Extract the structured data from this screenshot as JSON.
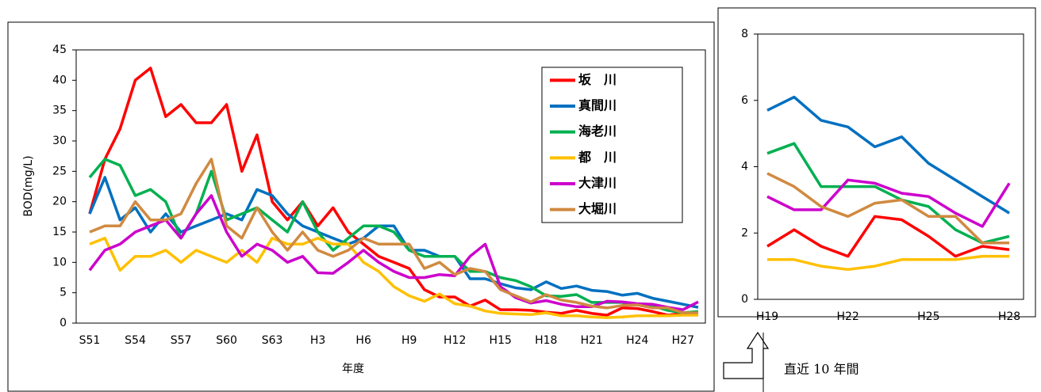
{
  "chart_data": [
    {
      "type": "line",
      "x_label": "年度",
      "y_label": "BOD(mg/L)",
      "categories": [
        "S51",
        null,
        null,
        "S54",
        null,
        null,
        "S57",
        null,
        null,
        "S60",
        null,
        null,
        "S63",
        null,
        null,
        "H3",
        null,
        null,
        "H6",
        null,
        null,
        "H9",
        null,
        null,
        "H12",
        null,
        null,
        "H15",
        null,
        null,
        "H18",
        null,
        null,
        "H21",
        null,
        null,
        "H24",
        null,
        null,
        "H27",
        null
      ],
      "ylim": [
        0,
        45
      ],
      "yticks": [
        0,
        5,
        10,
        15,
        20,
        25,
        30,
        35,
        40,
        45
      ],
      "grid": false,
      "legend": "upper right",
      "series": [
        {
          "name": "坂　川",
          "color": "#ff0000",
          "values": [
            18,
            27,
            32,
            40,
            42,
            34,
            36,
            33,
            33,
            36,
            25,
            31,
            20,
            17,
            20,
            16,
            19,
            15,
            13,
            11,
            10,
            9,
            5.5,
            4.3,
            4.3,
            2.8,
            3.8,
            2.2,
            2.2,
            2.1,
            1.8,
            1.6,
            2.1,
            1.6,
            1.3,
            2.5,
            2.4,
            1.9,
            1.3,
            1.6,
            1.5
          ]
        },
        {
          "name": "真間川",
          "color": "#0070c0",
          "values": [
            18,
            24,
            17,
            19,
            15,
            18,
            15,
            16,
            17,
            18,
            17,
            22,
            21,
            18,
            16,
            15,
            14,
            13,
            14,
            16,
            16,
            12,
            12,
            11,
            11,
            7.3,
            7.3,
            6.5,
            5.8,
            5.5,
            6.8,
            5.7,
            6.1,
            5.4,
            5.2,
            4.6,
            4.9,
            4.1,
            3.6,
            3.1,
            2.6
          ]
        },
        {
          "name": "海老川",
          "color": "#00b050",
          "values": [
            24,
            27,
            26,
            21,
            22,
            20,
            14,
            18,
            25,
            17,
            18,
            19,
            17,
            15,
            20,
            15,
            12,
            14,
            16,
            16,
            15,
            12,
            11,
            11,
            11,
            8.5,
            8.5,
            7.5,
            7,
            6,
            4.5,
            4.4,
            4.7,
            3.4,
            3.4,
            3.4,
            3.0,
            2.8,
            2.1,
            1.7,
            1.9
          ]
        },
        {
          "name": "都　川",
          "color": "#ffc000",
          "values": [
            13,
            14,
            8.7,
            11,
            11,
            12,
            10,
            12,
            11,
            10,
            12,
            10,
            14,
            13,
            13,
            14,
            13,
            13,
            10,
            8.5,
            6,
            4.5,
            3.6,
            4.8,
            3.2,
            2.8,
            2.0,
            1.6,
            1.5,
            1.4,
            1.7,
            1.2,
            1.2,
            1.0,
            0.9,
            1.0,
            1.2,
            1.2,
            1.2,
            1.3,
            1.3
          ]
        },
        {
          "name": "大津川",
          "color": "#cc00cc",
          "values": [
            8.7,
            12,
            13,
            15,
            16,
            17,
            14,
            18,
            21,
            15,
            11,
            13,
            12,
            10,
            11,
            8.3,
            8.2,
            10,
            12,
            10,
            8.5,
            7.5,
            7.5,
            8,
            7.8,
            11,
            13,
            6,
            4.2,
            3.3,
            3.7,
            3.1,
            2.7,
            2.7,
            3.6,
            3.5,
            3.2,
            3.1,
            2.6,
            2.2,
            3.5
          ]
        },
        {
          "name": "大堀川",
          "color": "#d08a40",
          "values": [
            15,
            16,
            16,
            20,
            17,
            17,
            18,
            23,
            27,
            16,
            14,
            19,
            15,
            12,
            15,
            12,
            11,
            12,
            14,
            13,
            13,
            13,
            9,
            10,
            8,
            9,
            8.5,
            5.5,
            4.5,
            3.5,
            4.7,
            3.8,
            3.4,
            2.8,
            2.5,
            2.9,
            3.0,
            2.5,
            2.5,
            1.7,
            1.7
          ]
        }
      ]
    },
    {
      "type": "line",
      "annotation": "直近 10 年間",
      "categories": [
        "H19",
        null,
        null,
        "H22",
        null,
        null,
        "H25",
        null,
        null,
        "H28"
      ],
      "ylim": [
        0,
        8
      ],
      "yticks": [
        0,
        2,
        4,
        6,
        8
      ],
      "grid": false,
      "series": [
        {
          "color": "#ff0000",
          "values": [
            1.6,
            2.1,
            1.6,
            1.3,
            2.5,
            2.4,
            1.9,
            1.3,
            1.6,
            1.5
          ]
        },
        {
          "color": "#0070c0",
          "values": [
            5.7,
            6.1,
            5.4,
            5.2,
            4.6,
            4.9,
            4.1,
            3.6,
            3.1,
            2.6
          ]
        },
        {
          "color": "#00b050",
          "values": [
            4.4,
            4.7,
            3.4,
            3.4,
            3.4,
            3.0,
            2.8,
            2.1,
            1.7,
            1.9
          ]
        },
        {
          "color": "#ffc000",
          "values": [
            1.2,
            1.2,
            1.0,
            0.9,
            1.0,
            1.2,
            1.2,
            1.2,
            1.3,
            1.3
          ]
        },
        {
          "color": "#cc00cc",
          "values": [
            3.1,
            2.7,
            2.7,
            3.6,
            3.5,
            3.2,
            3.1,
            2.6,
            2.2,
            3.5
          ]
        },
        {
          "color": "#d08a40",
          "values": [
            3.8,
            3.4,
            2.8,
            2.5,
            2.9,
            3.0,
            2.5,
            2.5,
            1.7,
            1.7
          ]
        }
      ]
    }
  ]
}
